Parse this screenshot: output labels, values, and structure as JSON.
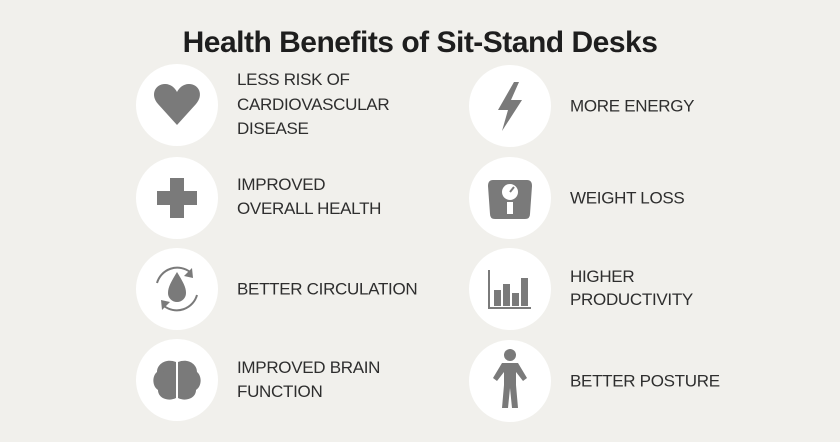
{
  "title": "Health Benefits of Sit-Stand Desks",
  "items": [
    {
      "lines": [
        "LESS RISK OF",
        "CARDIOVASCULAR",
        "DISEASE"
      ]
    },
    {
      "lines": [
        "MORE ENERGY"
      ]
    },
    {
      "lines": [
        "IMPROVED",
        "OVERALL HEALTH"
      ]
    },
    {
      "lines": [
        "WEIGHT LOSS"
      ]
    },
    {
      "lines": [
        "BETTER CIRCULATION"
      ]
    },
    {
      "lines": [
        "HIGHER",
        "PRODUCTIVITY"
      ]
    },
    {
      "lines": [
        "IMPROVED BRAIN",
        "FUNCTION"
      ]
    },
    {
      "lines": [
        "BETTER POSTURE"
      ]
    }
  ]
}
